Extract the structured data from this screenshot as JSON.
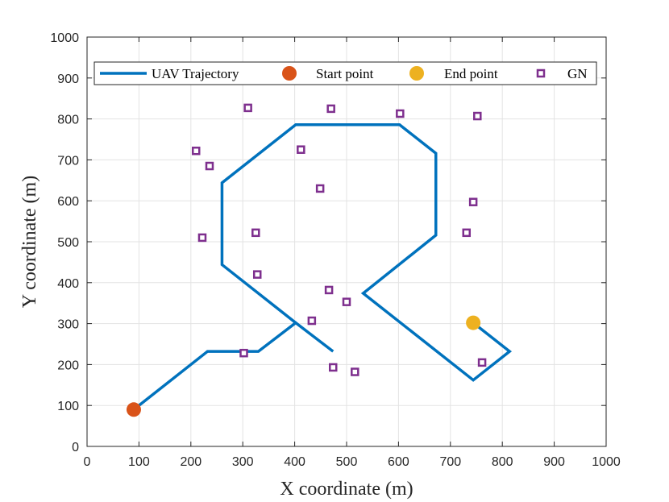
{
  "chart_data": {
    "type": "line",
    "title": "",
    "xlabel": "X coordinate (m)",
    "ylabel": "Y coordinate (m)",
    "xlim": [
      0,
      1000
    ],
    "ylim": [
      0,
      1000
    ],
    "xticks": [
      0,
      100,
      200,
      300,
      400,
      500,
      600,
      700,
      800,
      900,
      1000
    ],
    "yticks": [
      0,
      100,
      200,
      300,
      400,
      500,
      600,
      700,
      800,
      900,
      1000
    ],
    "grid": true,
    "legend_position": "top",
    "series": [
      {
        "name": "UAV Trajectory",
        "kind": "line",
        "color": "#0072BD",
        "x": [
          90,
          232,
          330,
          402,
          474
        ],
        "y": [
          90,
          232,
          232,
          302,
          232
        ],
        "extra_segments": [
          {
            "x": [
              402,
              260,
              260,
              402,
              602,
              672,
              672,
              532,
              674,
              744,
              814,
              744
            ],
            "y": [
              302,
              444,
              644,
              786,
              786,
              716,
              516,
              374,
              232,
              162,
              232,
              302
            ]
          }
        ]
      },
      {
        "name": "Start point",
        "kind": "marker",
        "marker": "circle",
        "color": "#D95319",
        "x": [
          90
        ],
        "y": [
          90
        ]
      },
      {
        "name": "End point",
        "kind": "marker",
        "marker": "circle",
        "color": "#EDB120",
        "x": [
          744
        ],
        "y": [
          302
        ]
      },
      {
        "name": "GN",
        "kind": "marker",
        "marker": "square",
        "color": "#7E2F8E",
        "x": [
          310,
          470,
          603,
          752,
          210,
          236,
          412,
          449,
          744,
          222,
          325,
          731,
          328,
          466,
          500,
          433,
          302,
          474,
          516,
          761
        ],
        "y": [
          827,
          825,
          813,
          807,
          722,
          685,
          725,
          630,
          597,
          510,
          522,
          522,
          420,
          382,
          353,
          307,
          228,
          193,
          182,
          205
        ]
      }
    ]
  }
}
